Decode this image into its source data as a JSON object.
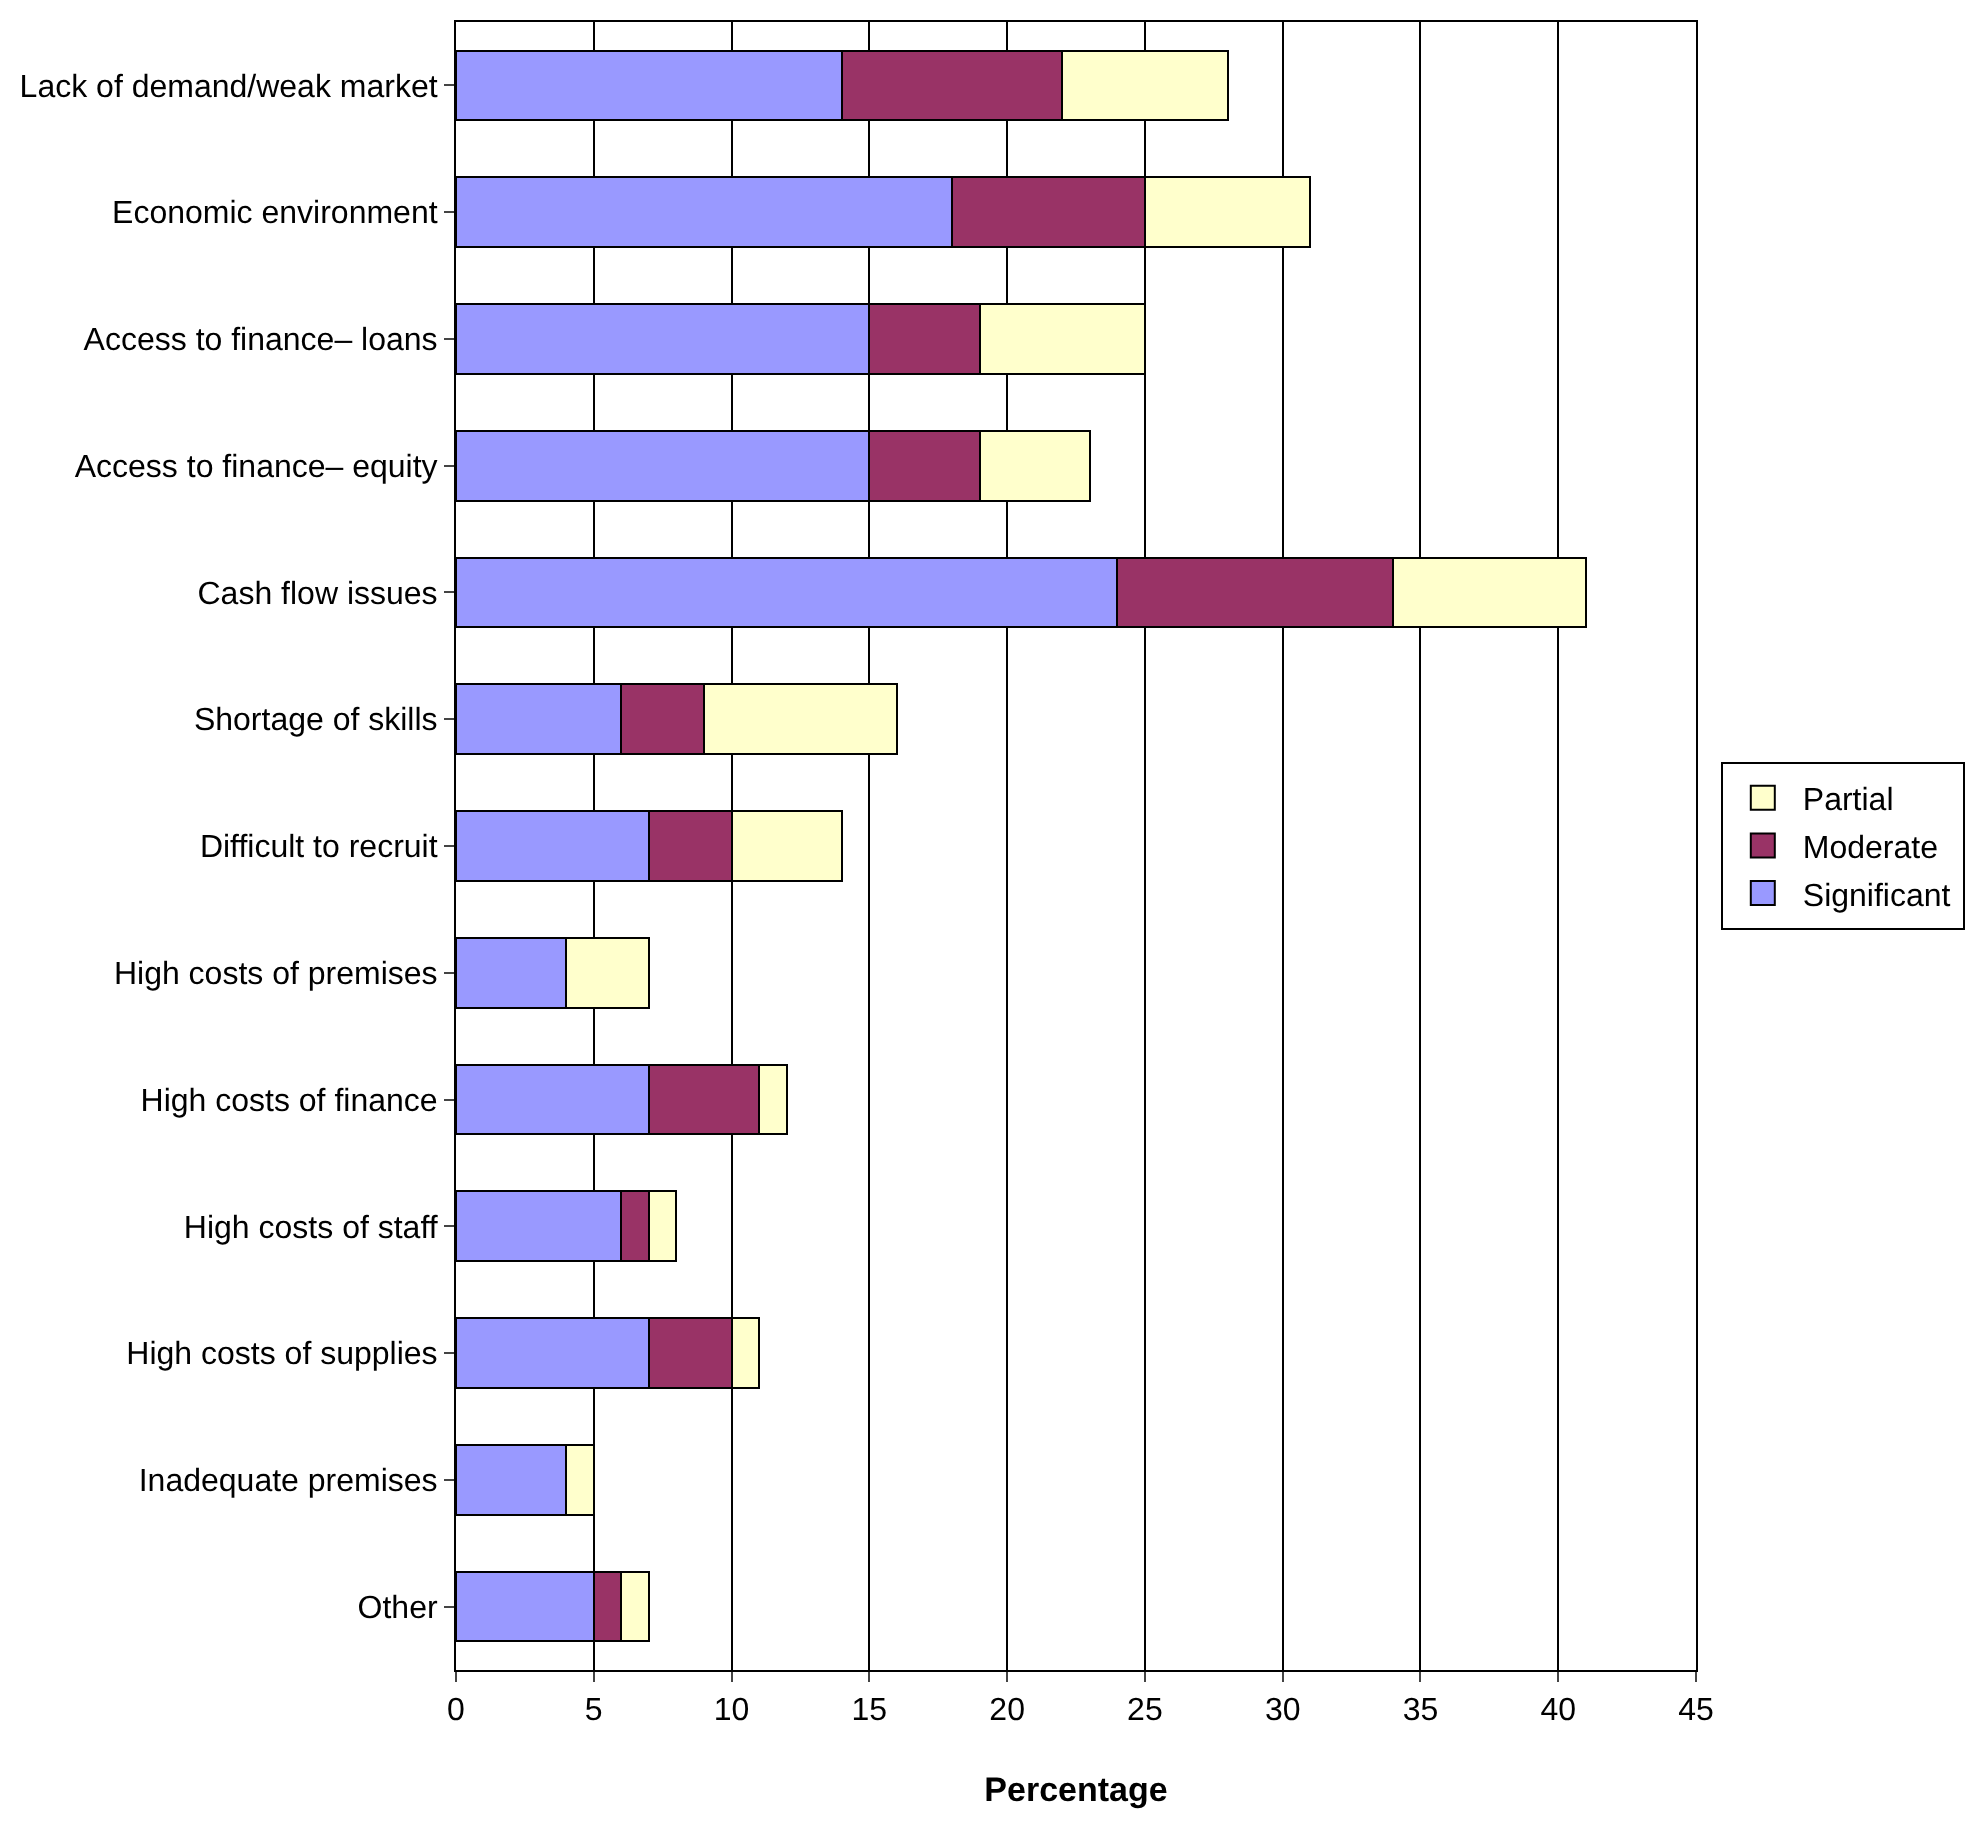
{
  "chart_data": {
    "type": "bar",
    "orientation": "horizontal",
    "stacked": true,
    "xlabel": "Percentage",
    "categories": [
      "Lack of demand/weak market",
      "Economic environment",
      "Access to finance– loans",
      "Access to finance– equity",
      "Cash flow issues",
      "Shortage of skills",
      "Difficult to recruit",
      "High costs of premises",
      "High costs of finance",
      "High costs of staff",
      "High costs of supplies",
      "Inadequate premises",
      "Other"
    ],
    "series": [
      {
        "name": "Significant",
        "color": "#9999ff",
        "values": [
          14,
          18,
          15,
          15,
          24,
          6,
          7,
          4,
          7,
          6,
          7,
          4,
          5
        ]
      },
      {
        "name": "Moderate",
        "color": "#993366",
        "values": [
          8,
          7,
          4,
          4,
          10,
          3,
          3,
          0,
          4,
          1,
          3,
          0,
          1
        ]
      },
      {
        "name": "Partial",
        "color": "#ffffcc",
        "values": [
          6,
          6,
          6,
          4,
          7,
          7,
          4,
          3,
          1,
          1,
          1,
          1,
          1
        ]
      }
    ],
    "xlim": [
      0,
      45
    ],
    "xticks": [
      0,
      5,
      10,
      15,
      20,
      25,
      30,
      35,
      40,
      45
    ],
    "grid": "x",
    "legend": "right"
  }
}
